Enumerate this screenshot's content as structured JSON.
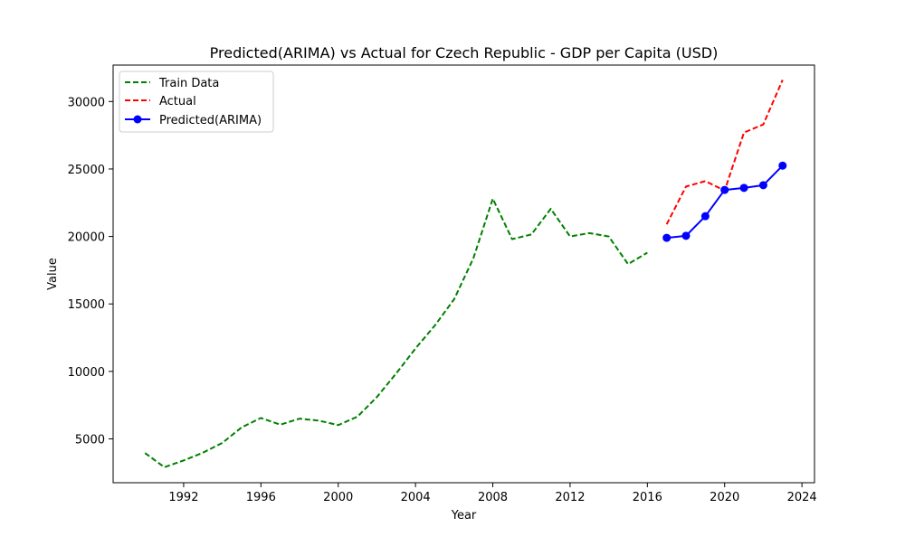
{
  "chart_data": {
    "type": "line",
    "title": "Predicted(ARIMA) vs Actual for Czech Republic - GDP per Capita (USD)",
    "xlabel": "Year",
    "ylabel": "Value",
    "xlim": [
      1988.35,
      2024.65
    ],
    "ylim": [
      1750,
      32700
    ],
    "x_ticks": [
      1992,
      1996,
      2000,
      2004,
      2008,
      2012,
      2016,
      2020,
      2024
    ],
    "y_ticks": [
      5000,
      10000,
      15000,
      20000,
      25000,
      30000
    ],
    "grid": false,
    "legend_position": "top-left",
    "series": [
      {
        "name": "Train Data",
        "color": "#008000",
        "style": "dashed",
        "marker": "none",
        "x": [
          1990,
          1991,
          1992,
          1993,
          1994,
          1995,
          1996,
          1997,
          1998,
          1999,
          2000,
          2001,
          2002,
          2003,
          2004,
          2005,
          2006,
          2007,
          2008,
          2009,
          2010,
          2011,
          2012,
          2013,
          2014,
          2015,
          2016
        ],
        "y": [
          3950,
          2900,
          3400,
          3980,
          4700,
          5850,
          6550,
          6050,
          6500,
          6350,
          6020,
          6650,
          8100,
          9850,
          11700,
          13400,
          15350,
          18400,
          22800,
          19800,
          20150,
          22050,
          20000,
          20250,
          20000,
          17950,
          18800
        ]
      },
      {
        "name": "Actual",
        "color": "#ff0000",
        "style": "dashed",
        "marker": "none",
        "x": [
          2017,
          2018,
          2019,
          2020,
          2021,
          2022,
          2023
        ],
        "y": [
          20900,
          23700,
          24100,
          23400,
          27700,
          28300,
          31600
        ]
      },
      {
        "name": "Predicted(ARIMA)",
        "color": "#0000ff",
        "style": "solid",
        "marker": "circle",
        "x": [
          2017,
          2018,
          2019,
          2020,
          2021,
          2022,
          2023
        ],
        "y": [
          19900,
          20050,
          21500,
          23450,
          23600,
          23800,
          25250
        ]
      }
    ]
  }
}
